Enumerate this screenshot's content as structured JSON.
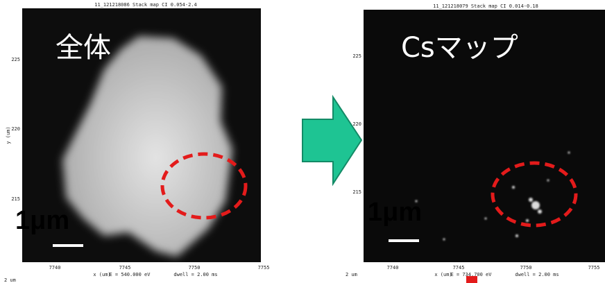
{
  "panels": [
    {
      "title": "11_121218086 Stack map CI 0.054-2.4",
      "label": "全体",
      "y_axis_label": "y (um)",
      "yticks": [
        "225",
        "220",
        "215"
      ],
      "xticks": [
        "7740",
        "7745",
        "7750",
        "7755"
      ],
      "x_axis_label": "x (um)",
      "energy": "E = 540.000 eV",
      "dwell": "dwell = 2.00 ms",
      "corner": "2 um",
      "scale": "1μm"
    },
    {
      "title": "11_121218079 Stack map CI 0.014-0.18",
      "label": "Csマップ",
      "yticks": [
        "225",
        "220",
        "215"
      ],
      "xticks": [
        "7740",
        "7745",
        "7750",
        "7755"
      ],
      "x_axis_label": "x (um)",
      "energy": "E = 734.700 eV",
      "dwell": "dwell = 2.00 ms",
      "corner": "2 um",
      "scale": "1μm"
    }
  ]
}
